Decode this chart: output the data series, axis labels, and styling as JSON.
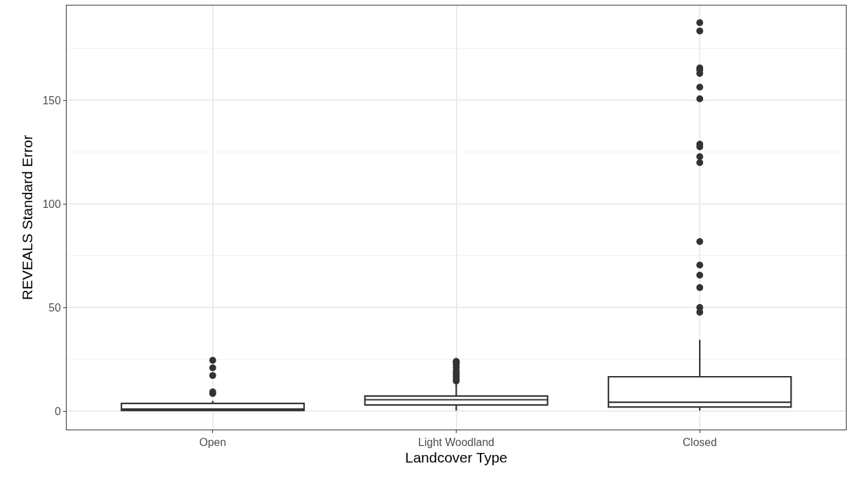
{
  "chart_data": {
    "type": "box",
    "xlabel": "Landcover Type",
    "ylabel": "REVEALS Standard Error",
    "categories": [
      "Open",
      "Light Woodland",
      "Closed"
    ],
    "color": "#333333",
    "boxes": [
      {
        "low": 0,
        "q1": 0.3,
        "median": 1,
        "q3": 3.7,
        "high": 5,
        "outliers": [
          8.5,
          9.3,
          17.2,
          20.9,
          24.5
        ]
      },
      {
        "low": 0.3,
        "q1": 3,
        "median": 5.5,
        "q3": 7.3,
        "high": 13.5,
        "outliers": [
          14.5,
          15.5,
          16.5,
          17.5,
          18.5,
          19.5,
          21,
          22.5,
          23.5,
          24
        ]
      },
      {
        "low": 0.3,
        "q1": 2,
        "median": 4.3,
        "q3": 16.6,
        "high": 34.4,
        "outliers": [
          47.7,
          50,
          59.6,
          65.6,
          70.5,
          81.8,
          119.9,
          122.8,
          127.5,
          128.8,
          150.7,
          156.3,
          162.9,
          164.6,
          165.6,
          183.4,
          187.4
        ]
      }
    ],
    "ylim": [
      -8.9,
      195.7
    ],
    "yticks": [
      0,
      50,
      100,
      150
    ],
    "grid": true,
    "marker": "circle"
  }
}
